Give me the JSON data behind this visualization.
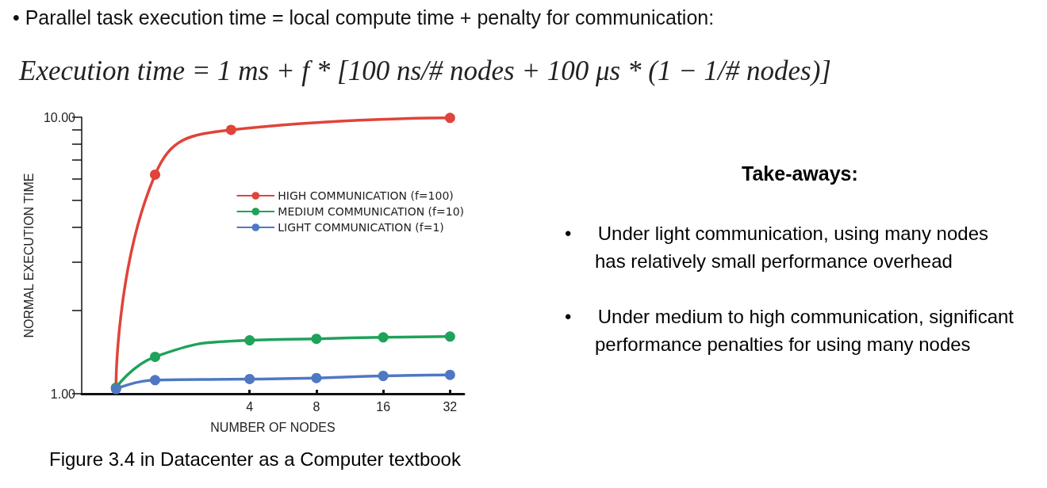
{
  "chart_data": {
    "type": "line",
    "title": "•  Parallel task execution time = local compute time + penalty for communication:",
    "subtitle": "Execution time = 1 ms + f * [100 ns/# nodes + 100 μs * (1 − 1/# nodes)]",
    "xlabel": "NUMBER OF NODES",
    "ylabel": "NORMAL EXECUTION TIME",
    "log": "xy",
    "xlim": [
      0.7,
      37
    ],
    "xticks": [
      4,
      8,
      16,
      32
    ],
    "ylim": [
      1,
      10
    ],
    "yticks": [
      {
        "value": 1,
        "label": "1.00"
      },
      {
        "value": 2,
        "label": null
      },
      {
        "value": 3,
        "label": null
      },
      {
        "value": 4,
        "label": null
      },
      {
        "value": 5,
        "label": null
      },
      {
        "value": 6,
        "label": null
      },
      {
        "value": 7,
        "label": null
      },
      {
        "value": 8,
        "label": null
      },
      {
        "value": 9,
        "label": null
      },
      {
        "value": 10,
        "label": "10.00"
      }
    ],
    "grid": false,
    "legend": "right",
    "marker": "circle",
    "line_style": "solid",
    "series": [
      {
        "name": "HIGH COMMUNICATION (f=100)",
        "color": "#e0443a",
        "x": [
          1,
          1.5,
          3.3,
          32
        ],
        "values": [
          1.05,
          6.2,
          9.0,
          9.95
        ]
      },
      {
        "name": "MEDIUM COMMUNICATION (f=10)",
        "color": "#1fa25a",
        "x": [
          1,
          1.5,
          4,
          8,
          16,
          32
        ],
        "values": [
          1.05,
          1.36,
          1.56,
          1.58,
          1.6,
          1.61
        ]
      },
      {
        "name": "LIGHT COMMUNICATION (f=1)",
        "color": "#4f78c4",
        "x": [
          1,
          1.5,
          4,
          8,
          16,
          32
        ],
        "values": [
          1.04,
          1.12,
          1.13,
          1.14,
          1.16,
          1.17
        ]
      }
    ],
    "annotations": [
      "Take-aways:",
      "•     Under light communication, using many nodes has relatively small performance overhead",
      "•     Under medium to high communication, significant performance penalties for using many nodes",
      "Figure 3.4 in Datacenter as a Computer textbook"
    ]
  }
}
